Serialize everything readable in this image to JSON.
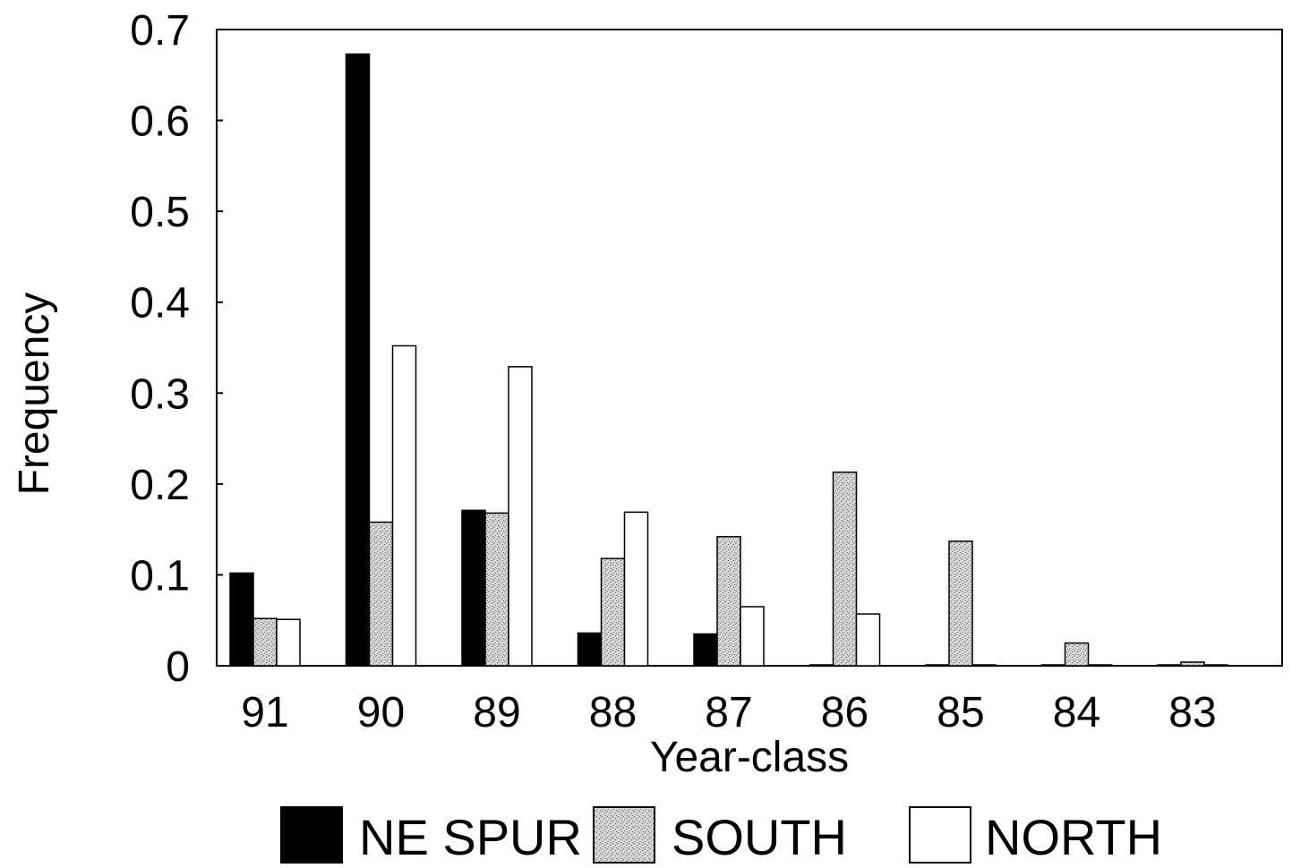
{
  "chart_data": {
    "type": "bar",
    "title": "",
    "xlabel": "Year-class",
    "ylabel": "Frequency",
    "ylim": [
      0,
      0.7
    ],
    "yticks": [
      "0",
      "0.1",
      "0.2",
      "0.3",
      "0.4",
      "0.5",
      "0.6",
      "0.7"
    ],
    "categories": [
      "91",
      "90",
      "89",
      "88",
      "87",
      "86",
      "85",
      "84",
      "83"
    ],
    "grid": false,
    "legend_position": "bottom",
    "series": [
      {
        "name": "NE SPUR",
        "color": "#000000",
        "pattern": "solid",
        "values": [
          0.102,
          0.673,
          0.171,
          0.036,
          0.035,
          0.001,
          0.001,
          0.001,
          0.001
        ]
      },
      {
        "name": "SOUTH",
        "color": "#c9c9c9",
        "pattern": "stipple",
        "values": [
          0.052,
          0.158,
          0.168,
          0.118,
          0.142,
          0.213,
          0.137,
          0.025,
          0.004
        ]
      },
      {
        "name": "NORTH",
        "color": "#ffffff",
        "pattern": "open",
        "values": [
          0.051,
          0.352,
          0.329,
          0.169,
          0.065,
          0.057,
          0.001,
          0.001,
          0.001
        ]
      }
    ]
  }
}
